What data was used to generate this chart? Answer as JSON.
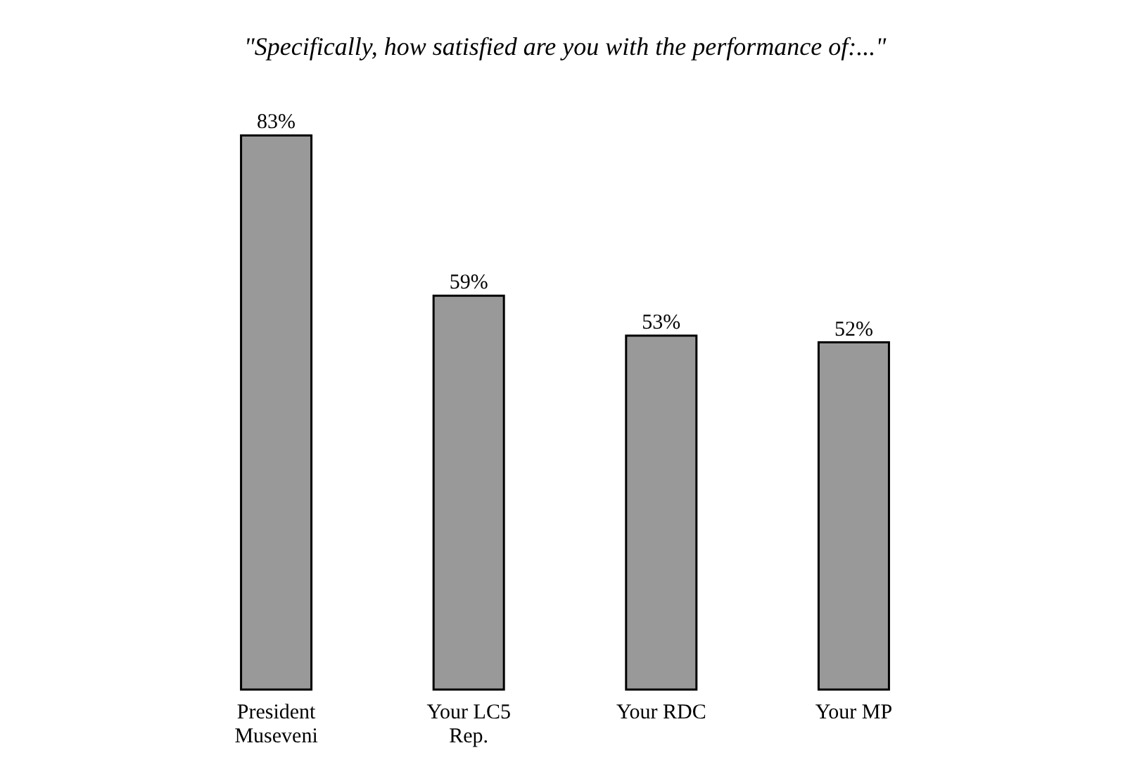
{
  "chart_data": {
    "type": "bar",
    "title": "\"Specifically, how satisfied are you with the performance of:...\"",
    "categories": [
      "President Museveni",
      "Your LC5 Rep.",
      "Your RDC",
      "Your MP"
    ],
    "values": [
      83,
      59,
      53,
      52
    ],
    "value_labels": [
      "83%",
      "59%",
      "53%",
      "52%"
    ],
    "color": "#999999"
  }
}
